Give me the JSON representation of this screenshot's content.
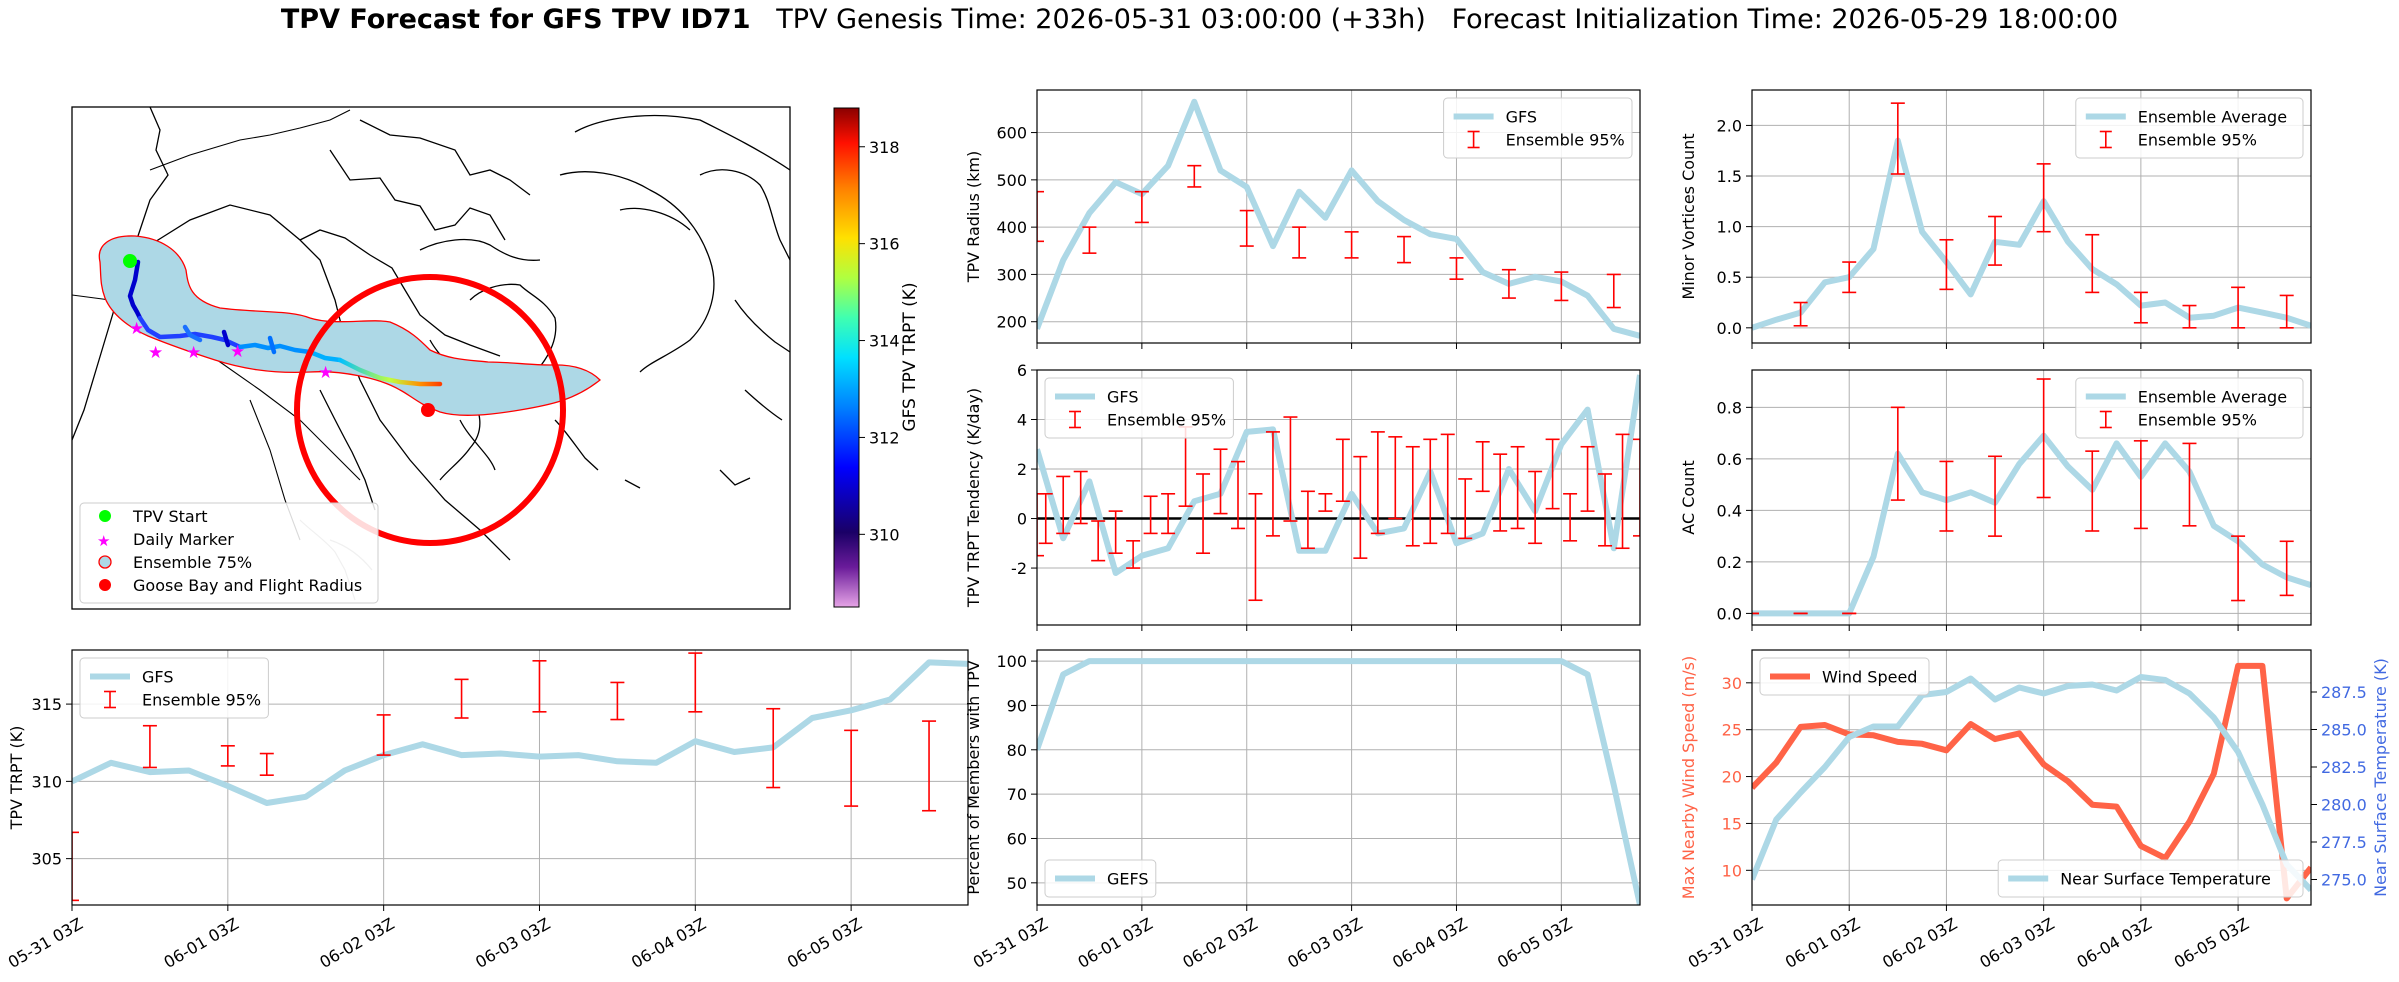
{
  "title": {
    "bold": "TPV Forecast for GFS TPV ID71",
    "genesis": "TPV Genesis Time: 2026-05-31 03:00:00 (+33h)",
    "init": "Forecast Initialization Time: 2026-05-29 18:00:00"
  },
  "colors": {
    "light_blue": "#add8e6",
    "red": "#ff0000",
    "tomato": "#ff6347",
    "royal_blue": "#4169e1",
    "lime": "#00ff00",
    "magenta": "#ff00ff",
    "ensemble_fill": "#add8e6",
    "ensemble_edge": "#ff0000"
  },
  "map": {
    "colorbar": {
      "label": "GFS TPV TRPT (K)",
      "ticks": [
        310,
        312,
        314,
        316,
        318
      ],
      "range": [
        308.5,
        318.8
      ],
      "colormap": "jet-like (purple to red)"
    },
    "legend": [
      "TPV Start",
      "Daily Marker",
      "Ensemble 75%",
      "Goose Bay and Flight Radius"
    ],
    "legend_icons": [
      "green-dot",
      "magenta-star",
      "lightblue-circle-red-edge",
      "red-dot"
    ]
  },
  "chart_data": [
    {
      "id": "trpt",
      "type": "line",
      "ylabel": "TPV TRPT (K)",
      "ylim": [
        302,
        318.5
      ],
      "yticks": [
        305,
        310,
        315
      ],
      "xlim": [
        0,
        69
      ],
      "xticks": [
        0,
        12,
        24,
        36,
        48,
        60
      ],
      "xtick_labels": [
        "05-31 03Z",
        "06-01 03Z",
        "06-02 03Z",
        "06-03 03Z",
        "06-04 03Z",
        "06-05 03Z"
      ],
      "legend": {
        "loc": "upper left",
        "entries": [
          "GFS",
          "Ensemble 95%"
        ]
      },
      "series": [
        {
          "name": "GFS",
          "color": "#add8e6",
          "x": [
            0,
            3,
            6,
            9,
            12,
            15,
            18,
            21,
            24,
            27,
            30,
            33,
            36,
            39,
            42,
            45,
            48,
            51,
            54,
            57,
            60,
            63,
            66,
            69
          ],
          "y": [
            310.0,
            311.2,
            310.6,
            310.7,
            309.7,
            308.6,
            309.0,
            310.7,
            311.7,
            312.4,
            311.7,
            311.8,
            311.6,
            311.7,
            311.3,
            311.2,
            312.6,
            311.9,
            312.2,
            314.1,
            314.6,
            315.3,
            317.7,
            317.6
          ]
        }
      ],
      "error_bars": {
        "name": "Ensemble 95%",
        "color": "#ff0000",
        "x": [
          0,
          6,
          12,
          15,
          24,
          30,
          36,
          42,
          48,
          54,
          60,
          66
        ],
        "low": [
          302.3,
          310.9,
          311.0,
          310.4,
          311.7,
          314.1,
          314.5,
          314.0,
          314.5,
          309.6,
          308.4,
          308.1
        ],
        "high": [
          306.7,
          313.6,
          312.3,
          311.8,
          314.3,
          316.6,
          317.8,
          316.4,
          318.3,
          314.7,
          313.3,
          313.9
        ]
      }
    },
    {
      "id": "radius",
      "type": "line",
      "ylabel": "TPV Radius (km)",
      "ylim": [
        155,
        690
      ],
      "yticks": [
        200,
        300,
        400,
        500,
        600
      ],
      "xlim": [
        0,
        69
      ],
      "legend": {
        "loc": "upper right",
        "entries": [
          "GFS",
          "Ensemble 95%"
        ]
      },
      "series": [
        {
          "name": "GFS",
          "color": "#add8e6",
          "x": [
            0,
            3,
            6,
            9,
            12,
            15,
            18,
            21,
            24,
            27,
            30,
            33,
            36,
            39,
            42,
            45,
            48,
            51,
            54,
            57,
            60,
            63,
            66,
            69
          ],
          "y": [
            185,
            330,
            430,
            495,
            470,
            530,
            665,
            520,
            485,
            360,
            475,
            420,
            520,
            455,
            415,
            385,
            375,
            305,
            280,
            295,
            285,
            255,
            185,
            170
          ]
        }
      ],
      "error_bars": {
        "name": "Ensemble 95%",
        "color": "#ff0000",
        "x": [
          0,
          6,
          12,
          18,
          24,
          30,
          36,
          42,
          48,
          54,
          60,
          66
        ],
        "low": [
          370,
          345,
          410,
          485,
          360,
          335,
          335,
          325,
          290,
          250,
          245,
          230
        ],
        "high": [
          475,
          400,
          475,
          530,
          435,
          400,
          390,
          380,
          335,
          310,
          305,
          300
        ]
      }
    },
    {
      "id": "trpt_tendency",
      "type": "line",
      "ylabel": "TPV TRPT Tendency (K/day)",
      "ylim": [
        -4.3,
        6
      ],
      "yticks": [
        -2,
        0,
        2,
        4,
        6
      ],
      "xlim": [
        0,
        69
      ],
      "legend": {
        "loc": "upper left",
        "entries": [
          "GFS",
          "Ensemble 95%"
        ]
      },
      "zero_line": 0,
      "series": [
        {
          "name": "GFS",
          "color": "#add8e6",
          "x": [
            0,
            3,
            6,
            9,
            12,
            15,
            18,
            21,
            24,
            27,
            30,
            33,
            36,
            39,
            42,
            45,
            48,
            51,
            54,
            57,
            60,
            63,
            66,
            69
          ],
          "y": [
            2.8,
            -0.8,
            1.5,
            -2.2,
            -1.5,
            -1.2,
            0.7,
            1.0,
            3.5,
            3.6,
            -1.3,
            -1.3,
            1.0,
            -0.6,
            -0.4,
            1.9,
            -1.0,
            -0.6,
            2.0,
            0.3,
            3.0,
            4.4,
            -1.2,
            5.8
          ]
        }
      ],
      "error_bars": {
        "name": "Ensemble 95%",
        "color": "#ff0000",
        "x": [
          0,
          1,
          3,
          5,
          7,
          9,
          11,
          13,
          15,
          17,
          19,
          21,
          23,
          25,
          27,
          29,
          31,
          33,
          35,
          37,
          39,
          41,
          43,
          45,
          47,
          49,
          51,
          53,
          55,
          57,
          59,
          61,
          63,
          65,
          67,
          69
        ],
        "low": [
          -1.5,
          -1.0,
          -0.6,
          -0.2,
          -1.7,
          -1.4,
          -2.0,
          -0.6,
          -0.6,
          0.5,
          -1.4,
          0.2,
          -0.4,
          -3.3,
          -0.7,
          -0.1,
          -1.2,
          0.3,
          0.7,
          -1.6,
          -0.6,
          0.0,
          -1.1,
          -1.0,
          -0.6,
          -0.8,
          1.1,
          -0.5,
          -0.4,
          -1.0,
          0.4,
          -0.9,
          0.3,
          -1.1,
          -1.2,
          -0.7
        ],
        "high": [
          1.0,
          1.0,
          1.7,
          1.9,
          -0.1,
          0.3,
          -0.9,
          0.9,
          1.0,
          3.7,
          1.8,
          2.8,
          2.3,
          1.0,
          3.5,
          4.1,
          1.1,
          1.0,
          3.2,
          2.5,
          3.5,
          3.3,
          2.9,
          3.2,
          3.4,
          1.6,
          3.1,
          2.6,
          2.9,
          1.9,
          3.2,
          1.0,
          2.9,
          1.8,
          3.4,
          3.2
        ]
      }
    },
    {
      "id": "percent_members",
      "type": "line",
      "ylabel": "Percent of Members with TPV",
      "ylim": [
        45,
        102.5
      ],
      "yticks": [
        50,
        60,
        70,
        80,
        90,
        100
      ],
      "xlim": [
        0,
        69
      ],
      "xticks": [
        0,
        12,
        24,
        36,
        48,
        60
      ],
      "xtick_labels": [
        "05-31 03Z",
        "06-01 03Z",
        "06-02 03Z",
        "06-03 03Z",
        "06-04 03Z",
        "06-05 03Z"
      ],
      "legend": {
        "loc": "lower left",
        "entries": [
          "GEFS"
        ]
      },
      "series": [
        {
          "name": "GEFS",
          "color": "#add8e6",
          "x": [
            0,
            3,
            6,
            9,
            12,
            15,
            18,
            21,
            24,
            27,
            30,
            33,
            36,
            39,
            42,
            45,
            48,
            51,
            54,
            57,
            60,
            63,
            66,
            69
          ],
          "y": [
            80,
            97,
            100,
            100,
            100,
            100,
            100,
            100,
            100,
            100,
            100,
            100,
            100,
            100,
            100,
            100,
            100,
            100,
            100,
            100,
            100,
            97,
            72,
            45
          ]
        }
      ]
    },
    {
      "id": "minor_vortices",
      "type": "line",
      "ylabel": "Minor Vortices Count",
      "ylim": [
        -0.15,
        2.35
      ],
      "yticks": [
        0.0,
        0.5,
        1.0,
        1.5,
        2.0
      ],
      "xlim": [
        0,
        69
      ],
      "legend": {
        "loc": "upper right",
        "entries": [
          "Ensemble Average",
          "Ensemble 95%"
        ]
      },
      "series": [
        {
          "name": "Ensemble Average",
          "color": "#add8e6",
          "x": [
            0,
            3,
            6,
            9,
            12,
            15,
            18,
            21,
            24,
            27,
            30,
            33,
            36,
            39,
            42,
            45,
            48,
            51,
            54,
            57,
            60,
            63,
            66,
            69
          ],
          "y": [
            0.0,
            0.08,
            0.15,
            0.45,
            0.5,
            0.78,
            1.85,
            0.95,
            0.65,
            0.33,
            0.85,
            0.82,
            1.25,
            0.85,
            0.58,
            0.43,
            0.22,
            0.25,
            0.1,
            0.12,
            0.2,
            0.15,
            0.1,
            0.02
          ]
        }
      ],
      "error_bars": {
        "name": "Ensemble 95%",
        "color": "#ff0000",
        "x": [
          6,
          12,
          18,
          24,
          30,
          36,
          42,
          48,
          54,
          60,
          66
        ],
        "low": [
          0.02,
          0.35,
          1.52,
          0.38,
          0.62,
          0.95,
          0.35,
          0.05,
          0.0,
          0.0,
          0.0
        ],
        "high": [
          0.25,
          0.65,
          2.22,
          0.87,
          1.1,
          1.62,
          0.92,
          0.35,
          0.22,
          0.4,
          0.32
        ]
      }
    },
    {
      "id": "ac_count",
      "type": "line",
      "ylabel": "AC Count",
      "ylim": [
        -0.045,
        0.945
      ],
      "yticks": [
        0.0,
        0.2,
        0.4,
        0.6,
        0.8
      ],
      "xlim": [
        0,
        69
      ],
      "legend": {
        "loc": "upper right",
        "entries": [
          "Ensemble Average",
          "Ensemble 95%"
        ]
      },
      "series": [
        {
          "name": "Ensemble Average",
          "color": "#add8e6",
          "x": [
            0,
            3,
            6,
            9,
            12,
            15,
            18,
            21,
            24,
            27,
            30,
            33,
            36,
            39,
            42,
            45,
            48,
            51,
            54,
            57,
            60,
            63,
            66,
            69
          ],
          "y": [
            0.0,
            0.0,
            0.0,
            0.0,
            0.0,
            0.22,
            0.62,
            0.47,
            0.44,
            0.47,
            0.43,
            0.58,
            0.69,
            0.57,
            0.48,
            0.66,
            0.53,
            0.66,
            0.55,
            0.34,
            0.28,
            0.19,
            0.14,
            0.11
          ]
        }
      ],
      "error_bars": {
        "name": "Ensemble 95%",
        "color": "#ff0000",
        "x": [
          0,
          6,
          12,
          18,
          24,
          30,
          36,
          42,
          48,
          54,
          60,
          66
        ],
        "low": [
          0.0,
          0.0,
          0.0,
          0.44,
          0.32,
          0.3,
          0.45,
          0.32,
          0.33,
          0.34,
          0.05,
          0.07
        ],
        "high": [
          0.0,
          0.0,
          0.0,
          0.8,
          0.59,
          0.61,
          0.91,
          0.63,
          0.67,
          0.66,
          0.3,
          0.28
        ]
      }
    },
    {
      "id": "wind_temp",
      "type": "line",
      "ylabel": "Max Nearby Wind Speed (m/s)",
      "ylabel_right": "Near Surface Temperature (K)",
      "ylim": [
        6.3,
        33.5
      ],
      "yticks": [
        10,
        15,
        20,
        25,
        30
      ],
      "ylim_right": [
        273.3,
        290.3
      ],
      "yticks_right": [
        275.0,
        277.5,
        280.0,
        282.5,
        285.0,
        287.5
      ],
      "xlim": [
        0,
        69
      ],
      "xticks": [
        0,
        12,
        24,
        36,
        48,
        60
      ],
      "xtick_labels": [
        "05-31 03Z",
        "06-01 03Z",
        "06-02 03Z",
        "06-03 03Z",
        "06-04 03Z",
        "06-05 03Z"
      ],
      "legend": {
        "loc": "upper left",
        "entries": [
          "Wind Speed"
        ]
      },
      "legend_right": {
        "loc": "lower right",
        "entries": [
          "Near Surface Temperature"
        ]
      },
      "series": [
        {
          "name": "Wind Speed",
          "color": "#ff6347",
          "axis": "left",
          "x": [
            0,
            3,
            6,
            9,
            12,
            15,
            18,
            21,
            24,
            27,
            30,
            33,
            36,
            39,
            42,
            45,
            48,
            51,
            54,
            57,
            60,
            63,
            66,
            69
          ],
          "y": [
            18.8,
            21.5,
            25.3,
            25.5,
            24.5,
            24.4,
            23.7,
            23.5,
            22.8,
            25.6,
            24.0,
            24.6,
            21.3,
            19.5,
            17.0,
            16.8,
            12.6,
            11.3,
            15.2,
            20.3,
            31.8,
            31.8,
            7.0,
            10.3
          ]
        },
        {
          "name": "Near Surface Temperature",
          "color": "#add8e6",
          "axis": "right",
          "x": [
            0,
            3,
            6,
            9,
            12,
            15,
            18,
            21,
            24,
            27,
            30,
            33,
            36,
            39,
            42,
            45,
            48,
            51,
            54,
            57,
            60,
            63,
            66,
            69
          ],
          "y": [
            275.0,
            279.0,
            280.8,
            282.5,
            284.5,
            285.2,
            285.2,
            287.3,
            287.5,
            288.4,
            287.0,
            287.8,
            287.4,
            287.9,
            288.0,
            287.6,
            288.5,
            288.3,
            287.4,
            285.8,
            283.5,
            280.0,
            276.0,
            274.3
          ]
        }
      ]
    }
  ]
}
